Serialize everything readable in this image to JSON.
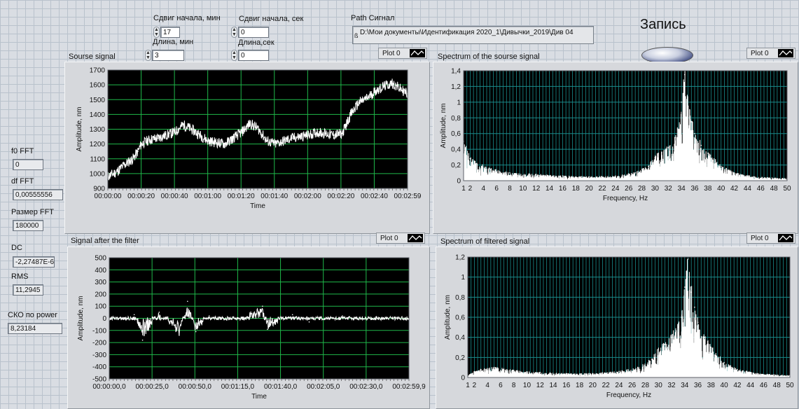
{
  "header": {
    "shift_min_label": "Сдвиг начала, мин",
    "shift_min_value": "17",
    "length_min_label": "Длина, мин",
    "length_min_value": "3",
    "shift_sec_label": "Сдвиг начала, сек",
    "shift_sec_value": "0",
    "length_sec_label": "Длина,сек",
    "length_sec_value": "0",
    "path_label": "Path  Сигнал",
    "path_value": "D:\\Мои документы\\Идентификация 2020_1\\Дивычки_2019\\Див 04",
    "record_label": "Запись"
  },
  "left_panel": {
    "f0_label": "f0 FFT",
    "f0_value": "0",
    "df_label": "df FFT",
    "df_value": "0,00555556",
    "size_label": "Размер FFT",
    "size_value": "180000",
    "dc_label": "DC",
    "dc_value": "-2,27487E-6",
    "rms_label": "RMS",
    "rms_value": "11,2945",
    "sko_label": "СКО по power",
    "sko_value": "8,23184"
  },
  "charts": {
    "source": {
      "title": "Sourse signal",
      "legend": "Plot 0",
      "ylabel": "Amplitude, nm",
      "xlabel": "Time"
    },
    "source_spectrum": {
      "title": "Spectrum of the sourse signal",
      "legend": "Plot 0",
      "ylabel": "Amplitude, nm",
      "xlabel": "Frequency, Hz"
    },
    "filtered": {
      "title": "Signal after the filter",
      "legend": "Plot 0",
      "ylabel": "Amplitude, nm",
      "xlabel": "Time"
    },
    "filtered_spectrum": {
      "title": "Spectrum of filtered signal",
      "legend": "Plot 0",
      "ylabel": "Amplitude, nm",
      "xlabel": "Frequency, Hz"
    }
  },
  "chart_data": [
    {
      "type": "line",
      "title": "Sourse signal",
      "xlabel": "Time",
      "ylabel": "Amplitude, nm",
      "ylim": [
        900,
        1700
      ],
      "yticks": [
        "900",
        "1000",
        "1100",
        "1200",
        "1300",
        "1400",
        "1500",
        "1600",
        "1700"
      ],
      "xticks": [
        "00:00:00",
        "00:00:20",
        "00:00:40",
        "00:01:00",
        "00:01:20",
        "00:01:40",
        "00:02:00",
        "00:02:20",
        "00:02:40",
        "00:02:59"
      ],
      "series": [
        {
          "name": "Plot 0",
          "x_seconds": [
            0,
            5,
            10,
            15,
            18,
            20,
            25,
            30,
            40,
            45,
            50,
            55,
            60,
            70,
            80,
            85,
            90,
            95,
            100,
            110,
            120,
            125,
            130,
            135,
            140,
            145,
            150,
            155,
            160,
            165,
            170,
            175,
            179
          ],
          "values": [
            980,
            1010,
            1060,
            1100,
            1150,
            1200,
            1230,
            1240,
            1280,
            1330,
            1300,
            1260,
            1220,
            1200,
            1280,
            1340,
            1300,
            1220,
            1200,
            1240,
            1260,
            1280,
            1270,
            1260,
            1270,
            1400,
            1480,
            1510,
            1560,
            1590,
            1610,
            1570,
            1540
          ]
        }
      ]
    },
    {
      "type": "line",
      "title": "Spectrum of the sourse signal",
      "xlabel": "Frequency, Hz",
      "ylabel": "Amplitude, nm",
      "ylim": [
        0,
        1.4
      ],
      "yticks": [
        "0",
        "0,2",
        "0,4",
        "0,6",
        "0,8",
        "1",
        "1,2",
        "1,4"
      ],
      "xticks": [
        "1",
        "2",
        "4",
        "6",
        "8",
        "10",
        "12",
        "14",
        "16",
        "18",
        "20",
        "22",
        "24",
        "26",
        "28",
        "30",
        "32",
        "34",
        "36",
        "38",
        "40",
        "42",
        "44",
        "46",
        "48",
        "50"
      ],
      "series": [
        {
          "name": "Plot 0",
          "x": [
            1,
            2,
            3,
            5,
            8,
            12,
            16,
            20,
            24,
            27,
            29,
            30,
            31,
            32,
            33,
            33.5,
            34,
            34.5,
            35,
            35.5,
            36,
            37,
            38,
            40,
            42,
            45,
            50
          ],
          "values": [
            0.5,
            0.28,
            0.22,
            0.15,
            0.1,
            0.08,
            0.06,
            0.05,
            0.06,
            0.1,
            0.18,
            0.3,
            0.36,
            0.42,
            0.55,
            0.65,
            1.0,
            1.35,
            0.95,
            0.75,
            0.6,
            0.45,
            0.35,
            0.18,
            0.1,
            0.05,
            0.03
          ]
        }
      ]
    },
    {
      "type": "line",
      "title": "Signal after the filter",
      "xlabel": "Time",
      "ylabel": "Amplitude, nm",
      "ylim": [
        -500,
        500
      ],
      "yticks": [
        "-500",
        "-400",
        "-300",
        "-200",
        "-100",
        "0",
        "100",
        "200",
        "300",
        "400",
        "500"
      ],
      "xticks": [
        "00:00:00,0",
        "00:00:25,0",
        "00:00:50,0",
        "00:01:15,0",
        "00:01:40,0",
        "00:02:05,0",
        "00:02:30,0",
        "00:02:59,9"
      ],
      "series": [
        {
          "name": "Plot 0",
          "x_seconds": [
            0,
            15,
            20,
            30,
            42,
            47,
            52,
            60,
            80,
            92,
            95,
            110,
            120,
            140,
            160,
            179.9
          ],
          "values": [
            0,
            30,
            -180,
            50,
            -140,
            140,
            -110,
            20,
            10,
            100,
            -90,
            30,
            -30,
            20,
            10,
            0
          ]
        }
      ]
    },
    {
      "type": "line",
      "title": "Spectrum of filtered signal",
      "xlabel": "Frequency, Hz",
      "ylabel": "Amplitude, nm",
      "ylim": [
        0,
        1.2
      ],
      "yticks": [
        "0",
        "0,2",
        "0,4",
        "0,6",
        "0,8",
        "1",
        "1,2"
      ],
      "xticks": [
        "1",
        "2",
        "4",
        "6",
        "8",
        "10",
        "12",
        "14",
        "16",
        "18",
        "20",
        "22",
        "24",
        "26",
        "28",
        "30",
        "32",
        "34",
        "36",
        "38",
        "40",
        "42",
        "44",
        "46",
        "48",
        "50"
      ],
      "series": [
        {
          "name": "Plot 0",
          "x": [
            1,
            2,
            3,
            5,
            8,
            12,
            16,
            20,
            24,
            27,
            29,
            30,
            31,
            32,
            33,
            33.5,
            34,
            34.5,
            35,
            35.5,
            36,
            37,
            38,
            40,
            42,
            45,
            50
          ],
          "values": [
            0.02,
            0.06,
            0.08,
            0.1,
            0.07,
            0.05,
            0.04,
            0.04,
            0.06,
            0.1,
            0.18,
            0.28,
            0.33,
            0.4,
            0.5,
            0.6,
            0.9,
            1.18,
            0.85,
            0.7,
            0.55,
            0.4,
            0.3,
            0.15,
            0.08,
            0.04,
            0.02
          ]
        }
      ]
    }
  ],
  "colors": {
    "plot_bg": "#000000",
    "grid": "#1fb84a",
    "grid_spectrum": "#1a8c8c",
    "trace": "#ffffff"
  }
}
